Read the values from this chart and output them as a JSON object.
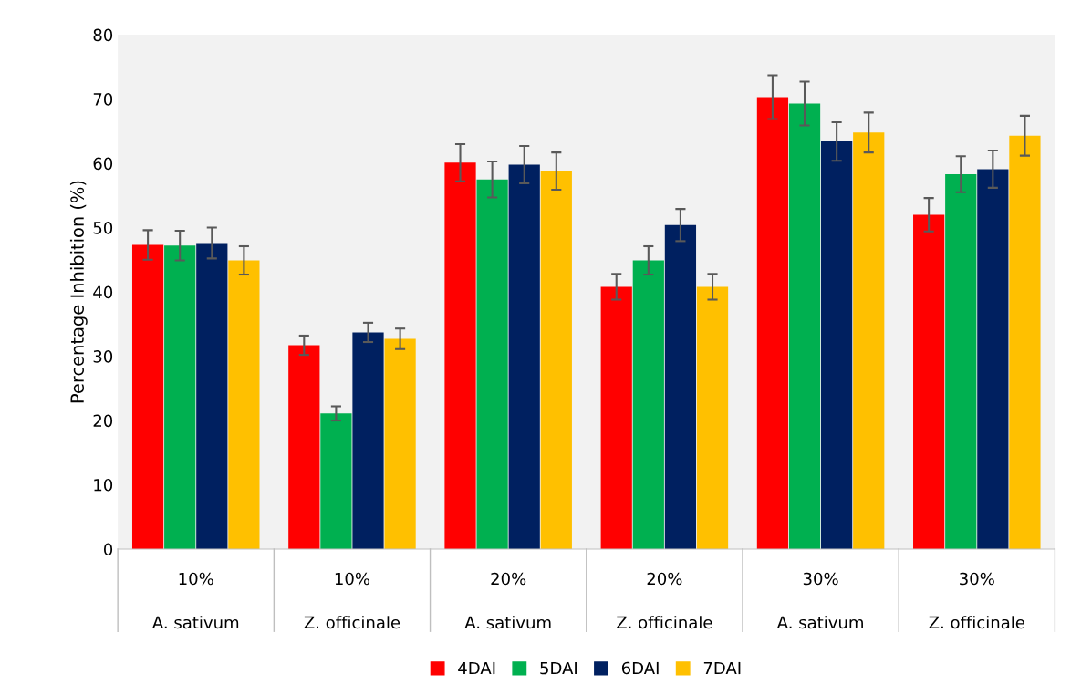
{
  "chart_data": {
    "type": "bar",
    "ylabel": "Percentage Inhibition (%)",
    "categories": [
      "10%\nA. sativum",
      "10%\nZ. officinale",
      "20%\nA. sativum",
      "20%\nZ. officinale",
      "30%\nA. sativum",
      "30%\nZ. officinale"
    ],
    "series": [
      {
        "name": "4DAI",
        "color": "#ff0000",
        "values": [
          47.3,
          31.7,
          60.1,
          40.8,
          70.3,
          52.0
        ],
        "errors": [
          2.3,
          1.5,
          2.9,
          2.0,
          3.4,
          2.6
        ]
      },
      {
        "name": "5DAI",
        "color": "#00b050",
        "values": [
          47.2,
          21.1,
          57.5,
          44.9,
          69.3,
          58.3
        ],
        "errors": [
          2.3,
          1.1,
          2.8,
          2.2,
          3.4,
          2.8
        ]
      },
      {
        "name": "6DAI",
        "color": "#002060",
        "values": [
          47.6,
          33.7,
          59.8,
          50.4,
          63.4,
          59.1
        ],
        "errors": [
          2.4,
          1.5,
          2.9,
          2.5,
          3.0,
          2.9
        ]
      },
      {
        "name": "7DAI",
        "color": "#ffc000",
        "values": [
          44.9,
          32.7,
          58.8,
          40.8,
          64.8,
          64.3
        ],
        "errors": [
          2.2,
          1.6,
          2.9,
          2.0,
          3.1,
          3.1
        ]
      }
    ],
    "ylim": [
      0,
      80
    ],
    "yticks": [
      0,
      10,
      20,
      30,
      40,
      50,
      60,
      70,
      80
    ],
    "grid": false,
    "legend": "bottom"
  }
}
